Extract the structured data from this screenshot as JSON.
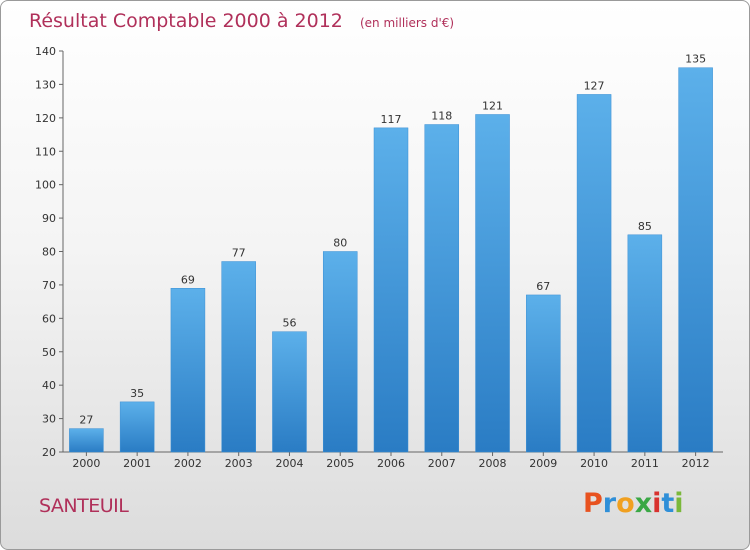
{
  "chart_data": {
    "type": "bar",
    "title": "Résultat Comptable 2000 à 2012",
    "subtitle": "(en milliers d'€)",
    "categories": [
      "2000",
      "2001",
      "2002",
      "2003",
      "2004",
      "2005",
      "2006",
      "2007",
      "2008",
      "2009",
      "2010",
      "2011",
      "2012"
    ],
    "values": [
      27,
      35,
      69,
      77,
      56,
      80,
      117,
      118,
      121,
      67,
      127,
      85,
      135
    ],
    "xlabel": "",
    "ylabel": "",
    "ylim": [
      20,
      140
    ],
    "yticks": [
      20,
      30,
      40,
      50,
      60,
      70,
      80,
      90,
      100,
      110,
      120,
      130,
      140
    ],
    "grid": false,
    "bar_color": "#4a9fe0"
  },
  "footer": {
    "commune": "SANTEUIL",
    "brand": "Proxiti",
    "brand_colors": [
      "#e8521f",
      "#2f8fd8",
      "#f0a020",
      "#3aa845",
      "#d8322f",
      "#2f8fd8",
      "#7ab83a"
    ]
  }
}
